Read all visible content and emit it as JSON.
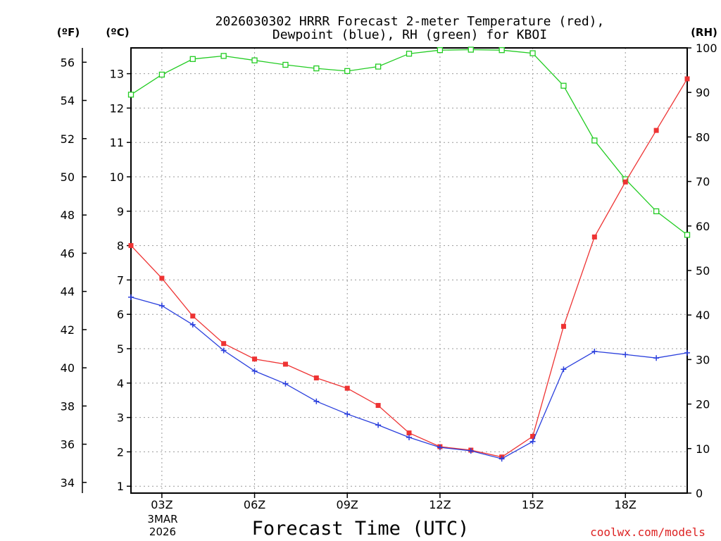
{
  "chart_data": {
    "type": "line",
    "title_line1": "2026030302 HRRR Forecast 2-meter Temperature (red),",
    "title_line2": "Dewpoint (blue), RH (green) for KBOI",
    "xlabel": "Forecast Time (UTC)",
    "unit_f": "(ºF)",
    "unit_c": "(ºC)",
    "unit_rh": "(RH)",
    "date_label": [
      "3MAR",
      "2026"
    ],
    "credit": "coolwx.com/models",
    "x_range": [
      2,
      20
    ],
    "x_ticks": [
      {
        "x": 3,
        "label": "03Z"
      },
      {
        "x": 6,
        "label": "06Z"
      },
      {
        "x": 9,
        "label": "09Z"
      },
      {
        "x": 12,
        "label": "12Z"
      },
      {
        "x": 15,
        "label": "15Z"
      },
      {
        "x": 18,
        "label": "18Z"
      }
    ],
    "celsius_range": [
      0.8,
      13.75
    ],
    "celsius_ticks": [
      1,
      2,
      3,
      4,
      5,
      6,
      7,
      8,
      9,
      10,
      11,
      12,
      13
    ],
    "fahrenheit_ticks": [
      34,
      36,
      38,
      40,
      42,
      44,
      46,
      48,
      50,
      52,
      54,
      56
    ],
    "rh_range": [
      0,
      100
    ],
    "rh_ticks": [
      0,
      10,
      20,
      30,
      40,
      50,
      60,
      70,
      80,
      90,
      100
    ],
    "series": [
      {
        "name": "Temperature",
        "axis": "celsius",
        "color": "#ee3333",
        "marker": "filled-square",
        "x": [
          2,
          3,
          4,
          5,
          6,
          7,
          8,
          9,
          10,
          11,
          12,
          13,
          14,
          15,
          16,
          17,
          18,
          19,
          20
        ],
        "values": [
          8.0,
          7.05,
          5.95,
          5.15,
          4.7,
          4.55,
          4.15,
          3.85,
          3.35,
          2.55,
          2.15,
          2.05,
          1.85,
          2.45,
          5.65,
          8.25,
          9.85,
          11.35,
          12.85
        ]
      },
      {
        "name": "Dewpoint",
        "axis": "celsius",
        "color": "#2a3fdd",
        "marker": "plus",
        "x": [
          2,
          3,
          4,
          5,
          6,
          7,
          8,
          9,
          10,
          11,
          12,
          13,
          14,
          15,
          16,
          17,
          18,
          19,
          20
        ],
        "values": [
          6.5,
          6.25,
          5.7,
          4.95,
          4.35,
          3.98,
          3.47,
          3.1,
          2.78,
          2.42,
          2.13,
          2.03,
          1.8,
          2.3,
          4.4,
          4.92,
          4.83,
          4.73,
          4.88
        ]
      },
      {
        "name": "RH",
        "axis": "rh",
        "color": "#22cc22",
        "marker": "open-square",
        "x": [
          2,
          3,
          4,
          5,
          6,
          7,
          8,
          9,
          10,
          11,
          12,
          13,
          14,
          15,
          16,
          17,
          18,
          19,
          20
        ],
        "values": [
          89.5,
          94,
          97.5,
          98.2,
          97.2,
          96.2,
          95.4,
          94.8,
          95.8,
          98.7,
          99.5,
          99.6,
          99.5,
          98.8,
          91.5,
          79.2,
          70.5,
          63.3,
          58
        ]
      }
    ]
  }
}
